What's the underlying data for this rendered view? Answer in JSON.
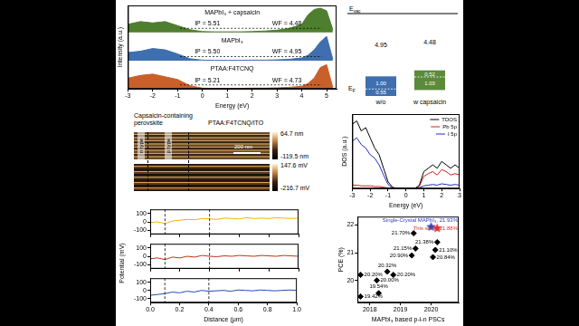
{
  "chart_data": [
    {
      "type": "line",
      "x_label": "Energy (eV)",
      "y_label": "Intensity (a.u.)",
      "tick_labels": "x",
      "x": [
        -3,
        -2.5,
        -2,
        -1.5,
        -1,
        -0.5,
        0,
        0.5,
        1,
        1.5,
        2,
        2.5,
        3,
        3.5,
        4,
        4.25,
        4.5,
        4.75,
        5,
        5.25
      ],
      "xlim": [
        -3,
        5.4
      ],
      "xticks": [
        -3,
        -2,
        -1,
        0,
        1,
        2,
        3,
        4,
        5
      ],
      "ylim": [
        0,
        3.1
      ],
      "series": [
        {
          "name": "MAPbI₃ + capsaicin",
          "color": "#4e7f2e",
          "baseline": 2.1,
          "annotations": [
            "IP = 5.51",
            "WF = 4.48"
          ],
          "values": [
            2.4,
            2.5,
            2.45,
            2.5,
            2.35,
            2.2,
            2.13,
            2.12,
            2.12,
            2.12,
            2.13,
            2.15,
            2.18,
            2.25,
            2.4,
            2.75,
            2.95,
            3.0,
            2.9,
            2.2
          ]
        },
        {
          "name": "MAPbI₃",
          "color": "#3f6fae",
          "baseline": 1.05,
          "annotations": [
            "IP = 5.50",
            "WF = 4.95"
          ],
          "values": [
            1.35,
            1.4,
            1.5,
            1.45,
            1.3,
            1.12,
            1.07,
            1.06,
            1.06,
            1.06,
            1.07,
            1.07,
            1.08,
            1.1,
            1.15,
            1.25,
            1.45,
            1.75,
            1.95,
            1.1
          ]
        },
        {
          "name": "PTAA:F4TCNQ",
          "color": "#c8602a",
          "baseline": 0,
          "annotations": [
            "IP = 5.21",
            "WF = 4.73"
          ],
          "values": [
            0.4,
            0.5,
            0.55,
            0.45,
            0.35,
            0.12,
            0.03,
            0.02,
            0.02,
            0.02,
            0.03,
            0.03,
            0.04,
            0.06,
            0.1,
            0.2,
            0.4,
            0.8,
            0.9,
            0.05
          ]
        }
      ]
    },
    {
      "type": "line",
      "tick_labels": "y",
      "x": [
        0,
        0.05,
        0.1,
        0.15,
        0.2,
        0.25,
        0.3,
        0.35,
        0.4,
        0.45,
        0.5,
        0.55,
        0.6,
        0.65,
        0.7,
        0.75,
        0.8,
        0.85,
        0.9,
        0.95,
        1
      ],
      "xlim": [
        0,
        1
      ],
      "xticks": [
        {
          "value": 0,
          "label": "0.0"
        },
        0.2,
        0.4,
        0.6,
        0.8,
        {
          "value": 1,
          "label": "1.0"
        }
      ],
      "ylim": [
        -150,
        150
      ],
      "yticks": [
        -100,
        0,
        100
      ],
      "dividers": [
        0.1,
        0.4
      ],
      "series": [
        {
          "color": "#f0b400",
          "values": [
            -10,
            0,
            -20,
            10,
            20,
            30,
            25,
            40,
            35,
            30,
            45,
            40,
            35,
            50,
            40,
            45,
            40,
            50,
            45,
            40,
            45
          ]
        }
      ]
    },
    {
      "type": "line",
      "tick_labels": "y",
      "y_label": "Potential (mV)",
      "x": [
        0,
        0.05,
        0.1,
        0.15,
        0.2,
        0.25,
        0.3,
        0.35,
        0.4,
        0.45,
        0.5,
        0.55,
        0.6,
        0.65,
        0.7,
        0.75,
        0.8,
        0.85,
        0.9,
        0.95,
        1
      ],
      "xlim": [
        0,
        1
      ],
      "xticks": [
        {
          "value": 0,
          "label": "0.0"
        },
        0.2,
        0.4,
        0.6,
        0.8,
        {
          "value": 1,
          "label": "1.0"
        }
      ],
      "ylim": [
        -150,
        150
      ],
      "yticks": [
        -100,
        0,
        100
      ],
      "dividers": [
        0.1,
        0.4
      ],
      "series": [
        {
          "color": "#c0301a",
          "values": [
            -30,
            -20,
            -40,
            -10,
            -20,
            0,
            -10,
            10,
            0,
            -5,
            5,
            0,
            10,
            5,
            0,
            10,
            5,
            0,
            10,
            5,
            0
          ]
        }
      ]
    },
    {
      "type": "line",
      "x_label": "Distance (μm)",
      "x": [
        0,
        0.05,
        0.1,
        0.15,
        0.2,
        0.25,
        0.3,
        0.35,
        0.4,
        0.45,
        0.5,
        0.55,
        0.6,
        0.65,
        0.7,
        0.75,
        0.8,
        0.85,
        0.9,
        0.95,
        1
      ],
      "xlim": [
        0,
        1
      ],
      "xticks": [
        {
          "value": 0,
          "label": "0.0"
        },
        0.2,
        0.4,
        0.6,
        0.8,
        {
          "value": 1,
          "label": "1.0"
        }
      ],
      "ylim": [
        -150,
        150
      ],
      "yticks": [
        -100,
        0,
        100
      ],
      "dividers": [
        0.1,
        0.4
      ],
      "series": [
        {
          "color": "#1f4fb0",
          "values": [
            -60,
            -50,
            -40,
            -20,
            -30,
            -10,
            -20,
            0,
            -10,
            -5,
            0,
            -10,
            5,
            0,
            -5,
            5,
            0,
            -5,
            0,
            5,
            0
          ]
        }
      ]
    },
    {
      "type": "line",
      "x_label": "Energy (eV)",
      "y_label": "DOS (a.u.)",
      "tick_labels": "x",
      "legend": "top-right",
      "x": [
        -3,
        -2.75,
        -2.5,
        -2.25,
        -2,
        -1.75,
        -1.5,
        -1.25,
        -1,
        -0.75,
        -0.5,
        -0.25,
        0,
        0.25,
        0.5,
        0.75,
        1,
        1.25,
        1.5,
        1.75,
        2,
        2.25,
        2.5,
        2.75,
        3
      ],
      "xlim": [
        -3,
        3
      ],
      "xticks": [
        -3,
        -2,
        -1,
        0,
        1,
        2,
        3
      ],
      "ylim": [
        0,
        1.1
      ],
      "series": [
        {
          "name": "TDOS",
          "color": "#000000",
          "values": [
            0.95,
            1.0,
            0.85,
            0.9,
            0.75,
            0.6,
            0.5,
            0.3,
            0.1,
            0.02,
            0,
            0,
            0,
            0,
            0,
            0.05,
            0.25,
            0.3,
            0.35,
            0.3,
            0.4,
            0.35,
            0.3,
            0.35,
            0.3
          ]
        },
        {
          "name": "Pb 5p",
          "color": "#d02020",
          "values": [
            0.05,
            0.05,
            0.04,
            0.04,
            0.04,
            0.03,
            0.03,
            0.02,
            0.01,
            0,
            0,
            0,
            0,
            0,
            0,
            0.03,
            0.18,
            0.22,
            0.25,
            0.2,
            0.28,
            0.25,
            0.2,
            0.22,
            0.2
          ]
        },
        {
          "name": "I 5p",
          "color": "#2030c0",
          "values": [
            0.7,
            0.75,
            0.65,
            0.6,
            0.5,
            0.45,
            0.35,
            0.2,
            0.06,
            0.01,
            0,
            0,
            0,
            0,
            0,
            0.01,
            0.04,
            0.05,
            0.06,
            0.05,
            0.07,
            0.06,
            0.05,
            0.06,
            0.05
          ]
        }
      ]
    },
    {
      "type": "scatter",
      "x_label": "MAPbI₃ based p-i-n PSCs",
      "y_label": "PCE (%)",
      "data_labels": true,
      "xlim": [
        2017.6,
        2020.9
      ],
      "xticks": [
        2018,
        2019,
        2020
      ],
      "ylim": [
        19.2,
        22.3
      ],
      "yticks": [
        20,
        21,
        22
      ],
      "series": [
        {
          "color": "#000000",
          "marker": "diamond",
          "x": [
            2017.7,
            2017.7,
            2018.23,
            2018.29,
            2018.57,
            2018.77,
            2019.43,
            2019.49,
            2019.37,
            2020.14,
            2020.2,
            2020.06
          ],
          "values": [
            19.42,
            20.2,
            20.0,
            19.54,
            20.32,
            20.2,
            21.7,
            21.15,
            20.9,
            21.1,
            21.38,
            20.84
          ],
          "value_labels": [
            "19.42%",
            "20.20%",
            "20.00%",
            "19.54%",
            "20.32%",
            "20.20%",
            "21.70%",
            "21.15%",
            "20.90%",
            "21.10%",
            "21.38%",
            "20.84%"
          ]
        },
        {
          "color": "#e03030",
          "marker": "star",
          "x": [
            2020.2
          ],
          "values": [
            21.88
          ],
          "value_labels": [
            "This work, 21.88%"
          ]
        },
        {
          "color": "#3040c0",
          "marker": "star",
          "x": [
            2020.0
          ],
          "values": [
            21.93
          ],
          "value_labels": [
            "Single-Crystal MAPbI₃, 21.93%"
          ]
        }
      ]
    }
  ],
  "energy_diagram": {
    "vacuum_label": "Evac",
    "fermi_label": "EF",
    "columns": [
      {
        "label": "w/o",
        "color": "#3f6fae",
        "gap": 4.95,
        "above_fermi": {
          "value": 1,
          "label": "1.00"
        },
        "below_fermi": 0.55
      },
      {
        "label": "w capsaicin",
        "color": "#5a8a3a",
        "gap": 4.48,
        "above_fermi": 0.52,
        "below_fermi": 1.03
      }
    ]
  },
  "kpfm": {
    "sample_label": "Capsaicin-containing perovskite",
    "substrate_label": "PTAA:F4TCNQ/ITO",
    "region_labels": [
      "n type",
      "p type"
    ],
    "scale_bar": "200 nm",
    "topography_colorbar": [
      {
        "value": 64.7,
        "label": "64.7 nm"
      },
      {
        "value": -119.5,
        "label": "-119.5 nm"
      }
    ],
    "potential_colorbar": [
      {
        "value": 147.6,
        "label": "147.6 mV"
      },
      {
        "value": -216.7,
        "label": "-216.7 mV"
      }
    ]
  }
}
